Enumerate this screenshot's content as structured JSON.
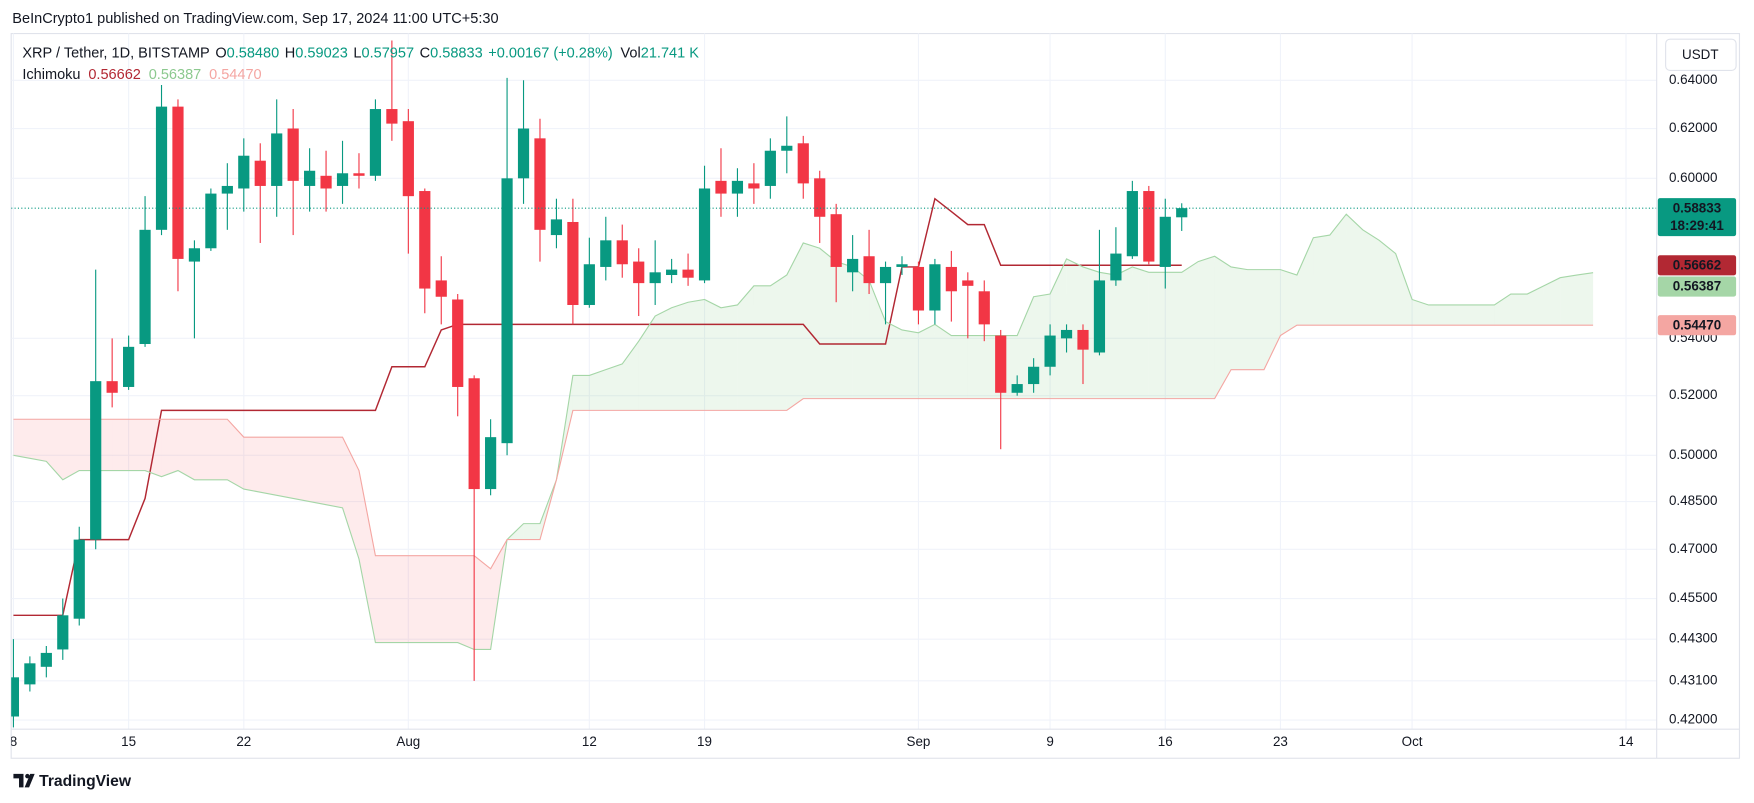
{
  "attribution": "BeInCrypto1 published on TradingView.com, Sep 17, 2024 11:00 UTC+5:30",
  "brand": "TradingView",
  "chart_data": {
    "type": "candlestick",
    "currency": "USDT",
    "legend": {
      "symbol": "XRP / Tether, 1D, BITSTAMP",
      "fields": [
        {
          "key": "O",
          "value": "0.58480"
        },
        {
          "key": "H",
          "value": "0.59023"
        },
        {
          "key": "L",
          "value": "0.57957"
        },
        {
          "key": "C",
          "value": "0.58833"
        }
      ],
      "change": "+0.00167 (+0.28%)",
      "volume_key": "Vol",
      "volume": "21.741 K"
    },
    "x": [
      "Jul 8",
      "Jul 9",
      "Jul 10",
      "Jul 11",
      "Jul 12",
      "Jul 13",
      "Jul 14",
      "Jul 15",
      "Jul 16",
      "Jul 17",
      "Jul 18",
      "Jul 19",
      "Jul 20",
      "Jul 21",
      "Jul 22",
      "Jul 23",
      "Jul 24",
      "Jul 25",
      "Jul 26",
      "Jul 27",
      "Jul 28",
      "Jul 29",
      "Jul 30",
      "Jul 31",
      "Aug 1",
      "Aug 2",
      "Aug 3",
      "Aug 4",
      "Aug 5",
      "Aug 6",
      "Aug 7",
      "Aug 8",
      "Aug 9",
      "Aug 10",
      "Aug 11",
      "Aug 12",
      "Aug 13",
      "Aug 14",
      "Aug 15",
      "Aug 16",
      "Aug 17",
      "Aug 18",
      "Aug 19",
      "Aug 20",
      "Aug 21",
      "Aug 22",
      "Aug 23",
      "Aug 24",
      "Aug 25",
      "Aug 26",
      "Aug 27",
      "Aug 28",
      "Aug 29",
      "Aug 30",
      "Aug 31",
      "Sep 1",
      "Sep 2",
      "Sep 3",
      "Sep 4",
      "Sep 5",
      "Sep 6",
      "Sep 7",
      "Sep 8",
      "Sep 9",
      "Sep 10",
      "Sep 11",
      "Sep 12",
      "Sep 13",
      "Sep 14",
      "Sep 15",
      "Sep 16",
      "Sep 17"
    ],
    "open": [
      0.421,
      0.43,
      0.435,
      0.44,
      0.449,
      0.473,
      0.525,
      0.523,
      0.538,
      0.58,
      0.629,
      0.568,
      0.573,
      0.594,
      0.596,
      0.607,
      0.597,
      0.62,
      0.597,
      0.601,
      0.597,
      0.602,
      0.601,
      0.628,
      0.623,
      0.595,
      0.561,
      0.554,
      0.526,
      0.489,
      0.504,
      0.6,
      0.616,
      0.578,
      0.583,
      0.552,
      0.566,
      0.576,
      0.568,
      0.56,
      0.563,
      0.565,
      0.561,
      0.599,
      0.594,
      0.598,
      0.597,
      0.611,
      0.614,
      0.6,
      0.586,
      0.564,
      0.57,
      0.56,
      0.566,
      0.566,
      0.55,
      0.566,
      0.561,
      0.557,
      0.541,
      0.521,
      0.524,
      0.53,
      0.54,
      0.543,
      0.535,
      0.561,
      0.57,
      0.595,
      0.566,
      0.5848
    ],
    "high": [
      0.443,
      0.438,
      0.441,
      0.455,
      0.477,
      0.565,
      0.54,
      0.541,
      0.593,
      0.638,
      0.632,
      0.576,
      0.596,
      0.606,
      0.616,
      0.614,
      0.632,
      0.628,
      0.612,
      0.611,
      0.615,
      0.61,
      0.632,
      0.657,
      0.628,
      0.596,
      0.57,
      0.556,
      0.527,
      0.512,
      0.641,
      0.64,
      0.624,
      0.592,
      0.592,
      0.577,
      0.585,
      0.582,
      0.573,
      0.576,
      0.569,
      0.571,
      0.605,
      0.612,
      0.604,
      0.606,
      0.616,
      0.625,
      0.617,
      0.603,
      0.59,
      0.578,
      0.58,
      0.568,
      0.57,
      0.568,
      0.569,
      0.572,
      0.564,
      0.561,
      0.543,
      0.527,
      0.533,
      0.545,
      0.545,
      0.545,
      0.58,
      0.581,
      0.599,
      0.597,
      0.592,
      0.59023
    ],
    "low": [
      0.418,
      0.428,
      0.432,
      0.437,
      0.447,
      0.47,
      0.516,
      0.522,
      0.537,
      0.578,
      0.557,
      0.54,
      0.572,
      0.58,
      0.587,
      0.575,
      0.585,
      0.578,
      0.587,
      0.587,
      0.59,
      0.596,
      0.599,
      0.615,
      0.571,
      0.549,
      0.545,
      0.513,
      0.431,
      0.487,
      0.5,
      0.59,
      0.568,
      0.573,
      0.545,
      0.551,
      0.561,
      0.562,
      0.548,
      0.552,
      0.56,
      0.559,
      0.56,
      0.585,
      0.585,
      0.59,
      0.592,
      0.602,
      0.592,
      0.575,
      0.553,
      0.557,
      0.556,
      0.545,
      0.563,
      0.545,
      0.545,
      0.546,
      0.54,
      0.539,
      0.502,
      0.52,
      0.521,
      0.527,
      0.535,
      0.524,
      0.534,
      0.559,
      0.569,
      0.567,
      0.558,
      0.57957
    ],
    "close": [
      0.432,
      0.436,
      0.439,
      0.45,
      0.473,
      0.525,
      0.521,
      0.537,
      0.58,
      0.629,
      0.569,
      0.573,
      0.594,
      0.597,
      0.609,
      0.597,
      0.618,
      0.599,
      0.603,
      0.596,
      0.602,
      0.601,
      0.628,
      0.622,
      0.593,
      0.558,
      0.555,
      0.523,
      0.489,
      0.506,
      0.6,
      0.62,
      0.58,
      0.584,
      0.552,
      0.567,
      0.576,
      0.567,
      0.56,
      0.564,
      0.565,
      0.562,
      0.596,
      0.594,
      0.599,
      0.596,
      0.611,
      0.613,
      0.598,
      0.585,
      0.566,
      0.569,
      0.56,
      0.566,
      0.567,
      0.55,
      0.567,
      0.557,
      0.559,
      0.545,
      0.521,
      0.524,
      0.53,
      0.541,
      0.543,
      0.536,
      0.561,
      0.571,
      0.595,
      0.568,
      0.585,
      0.58833
    ],
    "up_color": "#089981",
    "down_color": "#f23645",
    "last_price": {
      "label": "0.58833",
      "countdown": "18:29:41"
    },
    "log_scale": true,
    "grid": true,
    "ylim": [
      0.4175,
      0.66
    ],
    "yticks": [
      {
        "value": 0.42,
        "label": "0.42000"
      },
      {
        "value": 0.431,
        "label": "0.43100"
      },
      {
        "value": 0.443,
        "label": "0.44300"
      },
      {
        "value": 0.455,
        "label": "0.45500"
      },
      {
        "value": 0.47,
        "label": "0.47000"
      },
      {
        "value": 0.485,
        "label": "0.48500"
      },
      {
        "value": 0.5,
        "label": "0.50000"
      },
      {
        "value": 0.52,
        "label": "0.52000"
      },
      {
        "value": 0.54,
        "label": "0.54000"
      },
      {
        "value": 0.6,
        "label": "0.60000"
      },
      {
        "value": 0.62,
        "label": "0.62000"
      },
      {
        "value": 0.64,
        "label": "0.64000"
      }
    ],
    "xlim": [
      "Jul 8",
      "Oct 16"
    ],
    "xticks": [
      {
        "value": "Jul 8",
        "label": "8"
      },
      {
        "value": "Jul 15",
        "label": "15"
      },
      {
        "value": "Jul 22",
        "label": "22"
      },
      {
        "value": "Aug 1",
        "label": "Aug"
      },
      {
        "value": "Aug 12",
        "label": "12"
      },
      {
        "value": "Aug 19",
        "label": "19"
      },
      {
        "value": "Sep 1",
        "label": "Sep"
      },
      {
        "value": "Sep 9",
        "label": "9"
      },
      {
        "value": "Sep 16",
        "label": "16"
      },
      {
        "value": "Sep 23",
        "label": "23"
      },
      {
        "value": "Oct 1",
        "label": "Oct"
      },
      {
        "value": "Oct 14",
        "label": "14"
      }
    ],
    "ichimoku": {
      "title": "Ichimoku",
      "cloud_up_color": "rgba(76,175,80,0.10)",
      "cloud_down_color": "rgba(242,54,69,0.10)",
      "lead_x": [
        "Jul 8",
        "Jul 9",
        "Jul 10",
        "Jul 11",
        "Jul 12",
        "Jul 13",
        "Jul 14",
        "Jul 15",
        "Jul 16",
        "Jul 17",
        "Jul 18",
        "Jul 19",
        "Jul 20",
        "Jul 21",
        "Jul 22",
        "Jul 23",
        "Jul 24",
        "Jul 25",
        "Jul 26",
        "Jul 27",
        "Jul 28",
        "Jul 29",
        "Jul 30",
        "Jul 31",
        "Aug 1",
        "Aug 2",
        "Aug 3",
        "Aug 4",
        "Aug 5",
        "Aug 6",
        "Aug 7",
        "Aug 8",
        "Aug 9",
        "Aug 10",
        "Aug 11",
        "Aug 12",
        "Aug 13",
        "Aug 14",
        "Aug 15",
        "Aug 16",
        "Aug 17",
        "Aug 18",
        "Aug 19",
        "Aug 20",
        "Aug 21",
        "Aug 22",
        "Aug 23",
        "Aug 24",
        "Aug 25",
        "Aug 26",
        "Aug 27",
        "Aug 28",
        "Aug 29",
        "Aug 30",
        "Aug 31",
        "Sep 1",
        "Sep 2",
        "Sep 3",
        "Sep 4",
        "Sep 5",
        "Sep 6",
        "Sep 7",
        "Sep 8",
        "Sep 9",
        "Sep 10",
        "Sep 11",
        "Sep 12",
        "Sep 13",
        "Sep 14",
        "Sep 15",
        "Sep 16",
        "Sep 17",
        "Sep 18",
        "Sep 19",
        "Sep 20",
        "Sep 21",
        "Sep 22",
        "Sep 23",
        "Sep 24",
        "Sep 25",
        "Sep 26",
        "Sep 27",
        "Sep 28",
        "Sep 29",
        "Sep 30",
        "Oct 1",
        "Oct 2",
        "Oct 3",
        "Oct 4",
        "Oct 5",
        "Oct 6",
        "Oct 7",
        "Oct 8",
        "Oct 9",
        "Oct 10",
        "Oct 11",
        "Oct 12"
      ],
      "lines": [
        {
          "color": "#b22833",
          "label_text_color": "#ffffff",
          "label": "0.56662",
          "values": [
            0.45,
            0.45,
            0.45,
            0.45,
            0.473,
            0.473,
            0.473,
            0.473,
            0.486,
            0.515,
            0.515,
            0.515,
            0.515,
            0.515,
            0.515,
            0.515,
            0.515,
            0.515,
            0.515,
            0.515,
            0.515,
            0.515,
            0.515,
            0.53,
            0.53,
            0.53,
            0.543,
            0.545,
            0.545,
            0.545,
            0.545,
            0.545,
            0.545,
            0.545,
            0.545,
            0.545,
            0.545,
            0.545,
            0.545,
            0.545,
            0.545,
            0.545,
            0.545,
            0.545,
            0.545,
            0.545,
            0.545,
            0.545,
            0.545,
            0.538,
            0.538,
            0.538,
            0.538,
            0.538,
            0.566,
            0.566,
            0.592,
            0.587,
            0.582,
            0.582,
            0.56662,
            0.56662,
            0.56662,
            0.56662,
            0.56662,
            0.56662,
            0.56662,
            0.56662,
            0.56662,
            0.56662,
            0.56662,
            0.56662
          ]
        },
        {
          "color": "#a5d6a7",
          "label_text_color": "#131722",
          "label": "0.56387",
          "values": [
            0.5,
            0.499,
            0.498,
            0.492,
            0.495,
            0.495,
            0.495,
            0.495,
            0.495,
            0.493,
            0.495,
            0.492,
            0.492,
            0.492,
            0.489,
            0.488,
            0.487,
            0.486,
            0.485,
            0.484,
            0.483,
            0.467,
            0.442,
            0.442,
            0.442,
            0.442,
            0.442,
            0.442,
            0.44,
            0.44,
            0.473,
            0.478,
            0.478,
            0.492,
            0.527,
            0.527,
            0.529,
            0.531,
            0.539,
            0.548,
            0.551,
            0.553,
            0.554,
            0.551,
            0.552,
            0.559,
            0.559,
            0.563,
            0.575,
            0.573,
            0.568,
            0.566,
            0.561,
            0.546,
            0.543,
            0.542,
            0.545,
            0.541,
            0.541,
            0.541,
            0.541,
            0.541,
            0.555,
            0.556,
            0.569,
            0.566,
            0.564,
            0.563,
            0.566,
            0.564,
            0.564,
            0.564,
            0.568,
            0.57,
            0.566,
            0.565,
            0.565,
            0.565,
            0.563,
            0.577,
            0.578,
            0.586,
            0.58,
            0.576,
            0.571,
            0.554,
            0.552,
            0.552,
            0.552,
            0.552,
            0.552,
            0.556,
            0.556,
            0.559,
            0.562,
            0.563,
            0.56387
          ]
        },
        {
          "color": "#f4a6a2",
          "label_text_color": "#131722",
          "label": "0.54470",
          "values": [
            0.512,
            0.512,
            0.512,
            0.512,
            0.512,
            0.512,
            0.512,
            0.512,
            0.512,
            0.512,
            0.512,
            0.512,
            0.512,
            0.512,
            0.506,
            0.506,
            0.506,
            0.506,
            0.506,
            0.506,
            0.506,
            0.495,
            0.468,
            0.468,
            0.468,
            0.468,
            0.468,
            0.468,
            0.468,
            0.464,
            0.473,
            0.473,
            0.473,
            0.492,
            0.515,
            0.515,
            0.515,
            0.515,
            0.515,
            0.515,
            0.515,
            0.515,
            0.515,
            0.515,
            0.515,
            0.515,
            0.515,
            0.515,
            0.519,
            0.519,
            0.519,
            0.519,
            0.519,
            0.519,
            0.519,
            0.519,
            0.519,
            0.519,
            0.519,
            0.519,
            0.519,
            0.519,
            0.519,
            0.519,
            0.519,
            0.519,
            0.519,
            0.519,
            0.519,
            0.519,
            0.519,
            0.519,
            0.519,
            0.519,
            0.529,
            0.529,
            0.529,
            0.541,
            0.5447,
            0.5447,
            0.5447,
            0.5447,
            0.5447,
            0.5447,
            0.5447,
            0.5447,
            0.5447,
            0.5447,
            0.5447,
            0.5447,
            0.5447,
            0.5447,
            0.5447,
            0.5447,
            0.5447,
            0.5447,
            0.5447
          ]
        }
      ]
    }
  }
}
